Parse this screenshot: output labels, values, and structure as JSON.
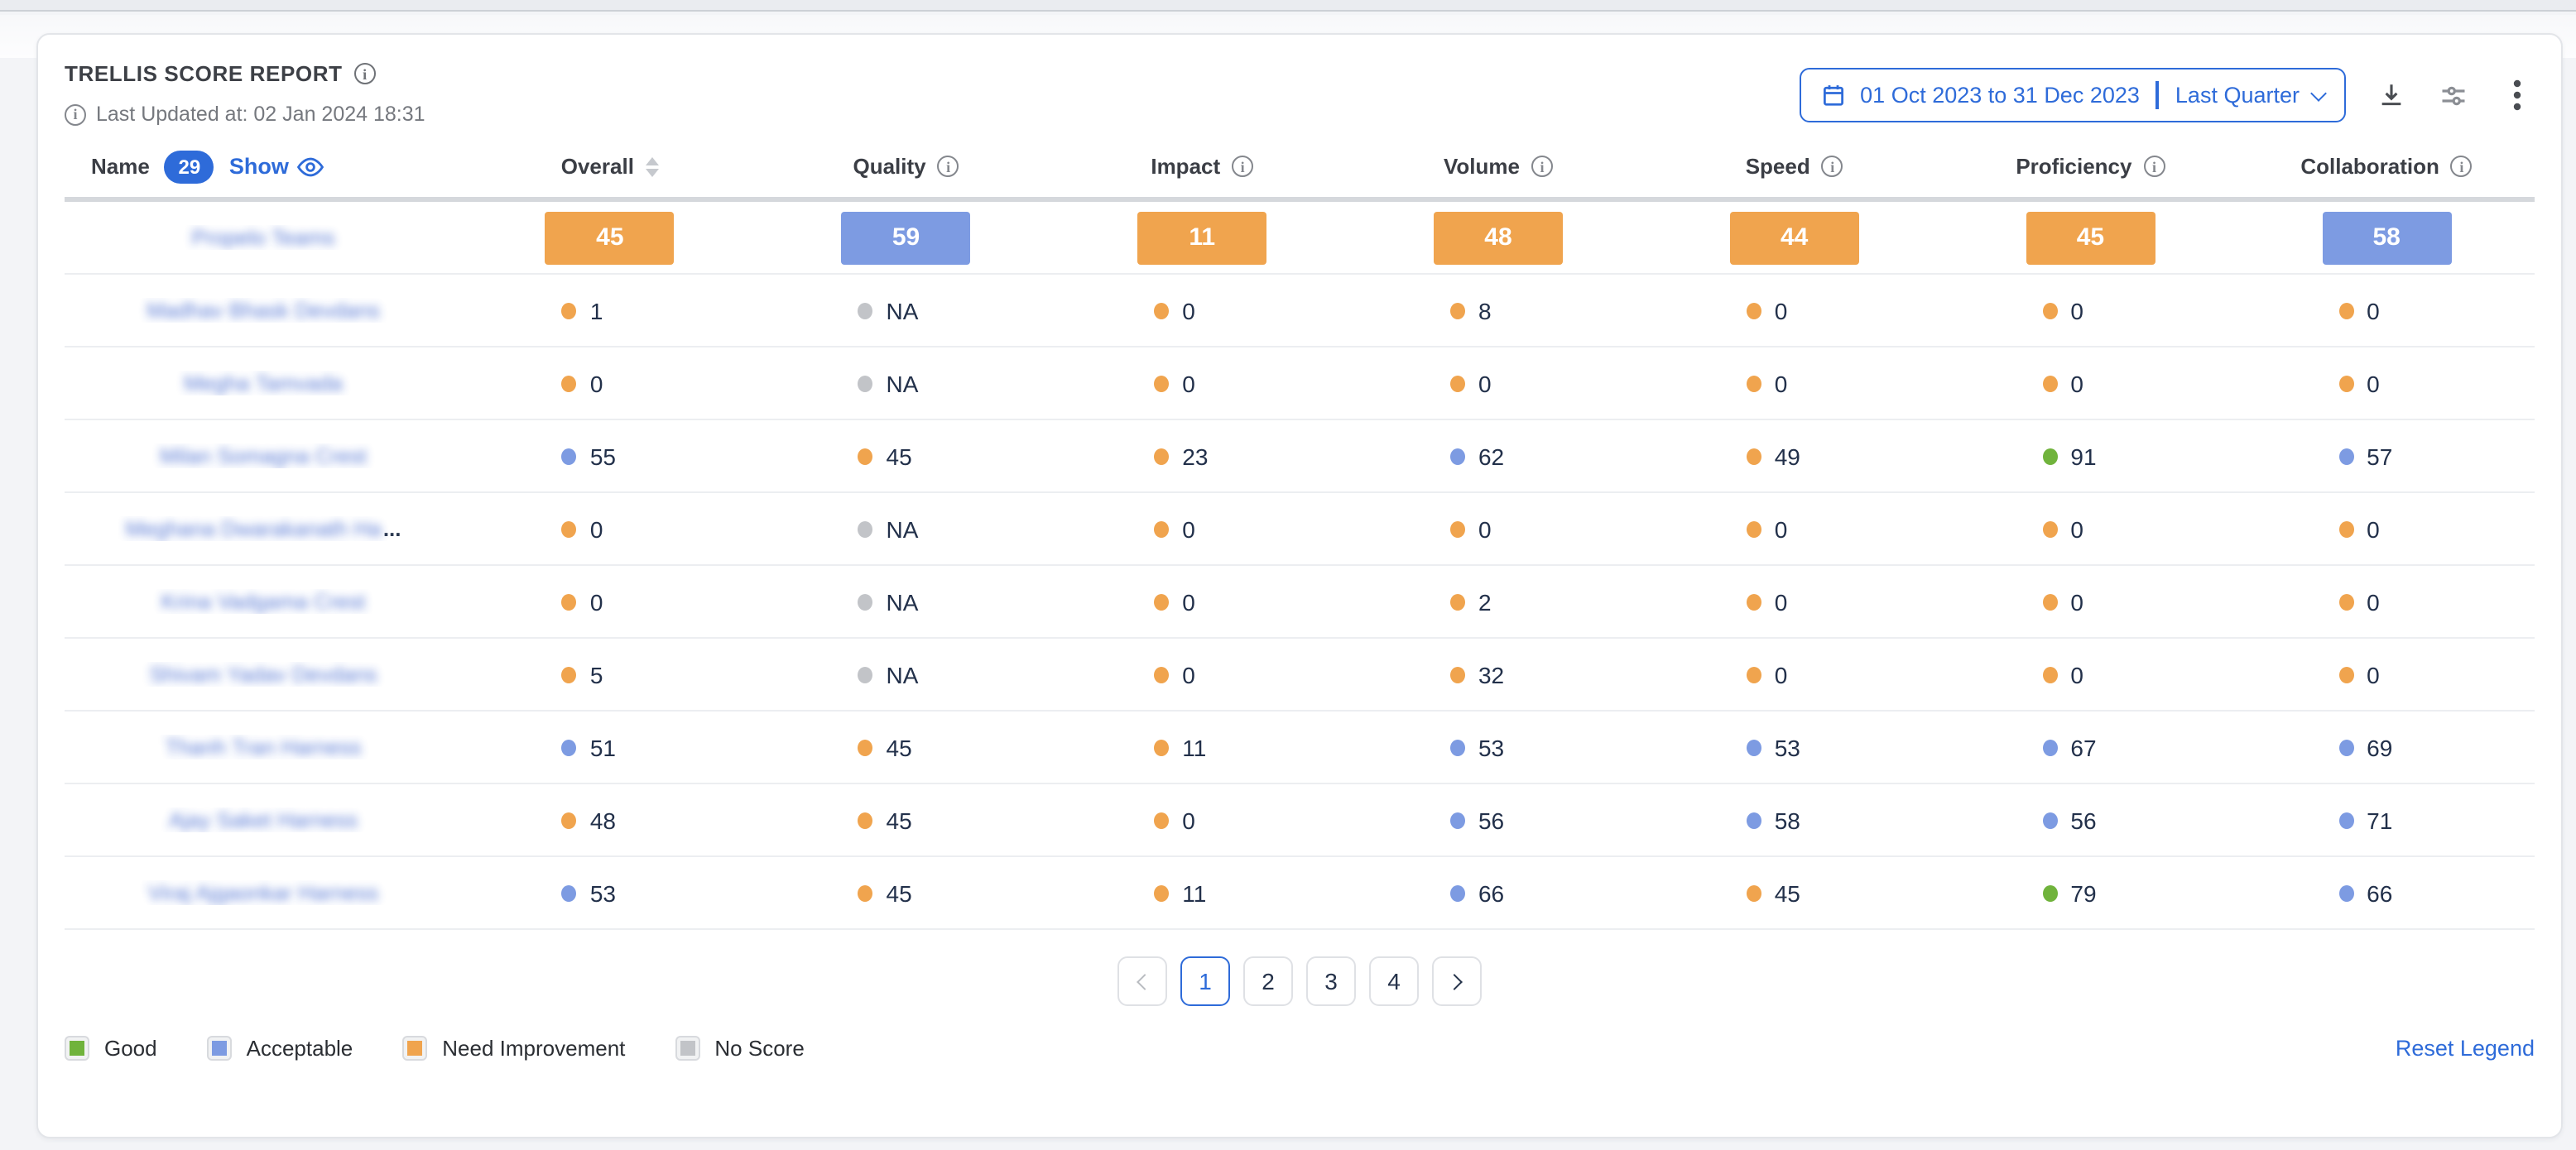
{
  "header": {
    "title": "TRELLIS SCORE REPORT",
    "last_updated": "Last Updated at: 02 Jan 2024 18:31",
    "date_range": {
      "range": "01 Oct 2023 to 31 Dec 2023",
      "preset": "Last Quarter"
    }
  },
  "table": {
    "name_header": "Name",
    "name_count_badge": "29",
    "show_label": "Show",
    "names_blurred": true,
    "columns": [
      {
        "label": "Overall",
        "control": "sort"
      },
      {
        "label": "Quality",
        "control": "info"
      },
      {
        "label": "Impact",
        "control": "info"
      },
      {
        "label": "Volume",
        "control": "info"
      },
      {
        "label": "Speed",
        "control": "info"
      },
      {
        "label": "Proficiency",
        "control": "info"
      },
      {
        "label": "Collaboration",
        "control": "info"
      }
    ],
    "rows": [
      {
        "name": "Propelo Teams",
        "type": "bar",
        "truncated": false,
        "cells": [
          {
            "v": "45",
            "s": "need_improvement"
          },
          {
            "v": "59",
            "s": "acceptable"
          },
          {
            "v": "11",
            "s": "need_improvement"
          },
          {
            "v": "48",
            "s": "need_improvement"
          },
          {
            "v": "44",
            "s": "need_improvement"
          },
          {
            "v": "45",
            "s": "need_improvement"
          },
          {
            "v": "58",
            "s": "acceptable"
          }
        ]
      },
      {
        "name": "Madhav Bhask Devdans",
        "type": "dot",
        "truncated": false,
        "cells": [
          {
            "v": "1",
            "s": "need_improvement"
          },
          {
            "v": "NA",
            "s": "no_score"
          },
          {
            "v": "0",
            "s": "need_improvement"
          },
          {
            "v": "8",
            "s": "need_improvement"
          },
          {
            "v": "0",
            "s": "need_improvement"
          },
          {
            "v": "0",
            "s": "need_improvement"
          },
          {
            "v": "0",
            "s": "need_improvement"
          }
        ]
      },
      {
        "name": "Megha Tamvada",
        "type": "dot",
        "truncated": false,
        "cells": [
          {
            "v": "0",
            "s": "need_improvement"
          },
          {
            "v": "NA",
            "s": "no_score"
          },
          {
            "v": "0",
            "s": "need_improvement"
          },
          {
            "v": "0",
            "s": "need_improvement"
          },
          {
            "v": "0",
            "s": "need_improvement"
          },
          {
            "v": "0",
            "s": "need_improvement"
          },
          {
            "v": "0",
            "s": "need_improvement"
          }
        ]
      },
      {
        "name": "Milan Somagna Crest",
        "type": "dot",
        "truncated": false,
        "cells": [
          {
            "v": "55",
            "s": "acceptable"
          },
          {
            "v": "45",
            "s": "need_improvement"
          },
          {
            "v": "23",
            "s": "need_improvement"
          },
          {
            "v": "62",
            "s": "acceptable"
          },
          {
            "v": "49",
            "s": "need_improvement"
          },
          {
            "v": "91",
            "s": "good"
          },
          {
            "v": "57",
            "s": "acceptable"
          }
        ]
      },
      {
        "name": "Meghana Dwarakanath Ha",
        "type": "dot",
        "truncated": true,
        "cells": [
          {
            "v": "0",
            "s": "need_improvement"
          },
          {
            "v": "NA",
            "s": "no_score"
          },
          {
            "v": "0",
            "s": "need_improvement"
          },
          {
            "v": "0",
            "s": "need_improvement"
          },
          {
            "v": "0",
            "s": "need_improvement"
          },
          {
            "v": "0",
            "s": "need_improvement"
          },
          {
            "v": "0",
            "s": "need_improvement"
          }
        ]
      },
      {
        "name": "Krina Vadgama Crest",
        "type": "dot",
        "truncated": false,
        "cells": [
          {
            "v": "0",
            "s": "need_improvement"
          },
          {
            "v": "NA",
            "s": "no_score"
          },
          {
            "v": "0",
            "s": "need_improvement"
          },
          {
            "v": "2",
            "s": "need_improvement"
          },
          {
            "v": "0",
            "s": "need_improvement"
          },
          {
            "v": "0",
            "s": "need_improvement"
          },
          {
            "v": "0",
            "s": "need_improvement"
          }
        ]
      },
      {
        "name": "Shivam Yadav Devdans",
        "type": "dot",
        "truncated": false,
        "cells": [
          {
            "v": "5",
            "s": "need_improvement"
          },
          {
            "v": "NA",
            "s": "no_score"
          },
          {
            "v": "0",
            "s": "need_improvement"
          },
          {
            "v": "32",
            "s": "need_improvement"
          },
          {
            "v": "0",
            "s": "need_improvement"
          },
          {
            "v": "0",
            "s": "need_improvement"
          },
          {
            "v": "0",
            "s": "need_improvement"
          }
        ]
      },
      {
        "name": "Thanh Tran Harness",
        "type": "dot",
        "truncated": false,
        "cells": [
          {
            "v": "51",
            "s": "acceptable"
          },
          {
            "v": "45",
            "s": "need_improvement"
          },
          {
            "v": "11",
            "s": "need_improvement"
          },
          {
            "v": "53",
            "s": "acceptable"
          },
          {
            "v": "53",
            "s": "acceptable"
          },
          {
            "v": "67",
            "s": "acceptable"
          },
          {
            "v": "69",
            "s": "acceptable"
          }
        ]
      },
      {
        "name": "Ajay Saket Harness",
        "type": "dot",
        "truncated": false,
        "cells": [
          {
            "v": "48",
            "s": "need_improvement"
          },
          {
            "v": "45",
            "s": "need_improvement"
          },
          {
            "v": "0",
            "s": "need_improvement"
          },
          {
            "v": "56",
            "s": "acceptable"
          },
          {
            "v": "58",
            "s": "acceptable"
          },
          {
            "v": "56",
            "s": "acceptable"
          },
          {
            "v": "71",
            "s": "acceptable"
          }
        ]
      },
      {
        "name": "Viraj Ajgaonkar Harness",
        "type": "dot",
        "truncated": false,
        "cells": [
          {
            "v": "53",
            "s": "acceptable"
          },
          {
            "v": "45",
            "s": "need_improvement"
          },
          {
            "v": "11",
            "s": "need_improvement"
          },
          {
            "v": "66",
            "s": "acceptable"
          },
          {
            "v": "45",
            "s": "need_improvement"
          },
          {
            "v": "79",
            "s": "good"
          },
          {
            "v": "66",
            "s": "acceptable"
          }
        ]
      }
    ]
  },
  "pagination": {
    "prev_enabled": false,
    "pages": [
      "1",
      "2",
      "3",
      "4"
    ],
    "current": "1"
  },
  "legend": {
    "items": [
      {
        "label": "Good",
        "status": "good"
      },
      {
        "label": "Acceptable",
        "status": "acceptable"
      },
      {
        "label": "Need Improvement",
        "status": "need_improvement"
      },
      {
        "label": "No Score",
        "status": "no_score"
      }
    ],
    "reset_label": "Reset Legend"
  },
  "colors": {
    "good": "#70b33c",
    "acceptable": "#7d9be2",
    "need_improvement": "#f0a44e",
    "no_score": "#c2c4c8",
    "accent_blue": "#2e6bd9"
  }
}
